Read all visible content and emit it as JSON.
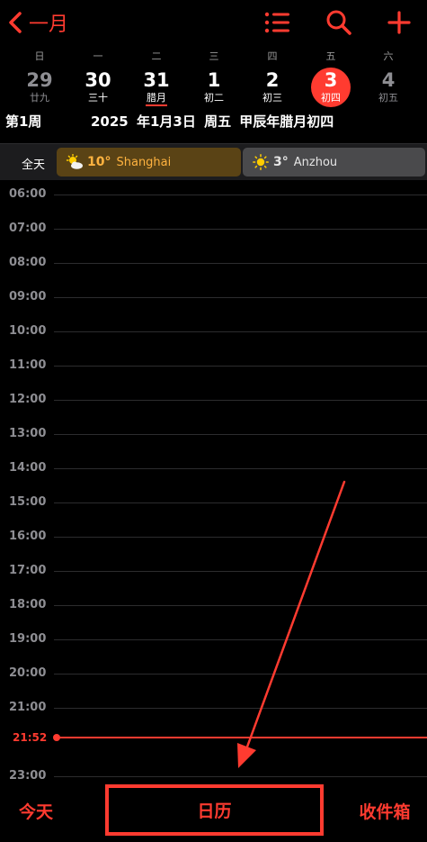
{
  "nav": {
    "back_label": "一月",
    "icons": [
      "chevron-left-icon",
      "list-icon",
      "search-icon",
      "plus-icon"
    ]
  },
  "weekdays": [
    "日",
    "一",
    "二",
    "三",
    "四",
    "五",
    "六"
  ],
  "days": [
    {
      "num": "29",
      "lunar": "廿九",
      "state": "muted"
    },
    {
      "num": "30",
      "lunar": "三十",
      "state": "normal"
    },
    {
      "num": "31",
      "lunar": "腊月",
      "state": "normal"
    },
    {
      "num": "1",
      "lunar": "初二",
      "state": "normal"
    },
    {
      "num": "2",
      "lunar": "初三",
      "state": "normal"
    },
    {
      "num": "3",
      "lunar": "初四",
      "state": "today"
    },
    {
      "num": "4",
      "lunar": "初五",
      "state": "muted"
    }
  ],
  "info": {
    "week": "第1周",
    "date": "2025 年1月3日 周五  甲辰年腊月初四"
  },
  "allday": {
    "label": "全天",
    "events": [
      {
        "temp": "10°",
        "city": "Shanghai",
        "icon": "partly-cloudy-icon",
        "color": "#ffb340"
      },
      {
        "temp": "3°",
        "city": "Anzhou",
        "icon": "sun-icon",
        "color": "#e5e5e5"
      }
    ]
  },
  "hours": [
    "06:00",
    "07:00",
    "08:00",
    "09:00",
    "10:00",
    "11:00",
    "12:00",
    "13:00",
    "14:00",
    "15:00",
    "16:00",
    "17:00",
    "18:00",
    "19:00",
    "20:00",
    "21:00",
    "23:00"
  ],
  "now": "21:52",
  "tabbar": {
    "today": "今天",
    "calendar": "日历",
    "inbox": "收件箱"
  },
  "accent_color": "#ff3b30"
}
